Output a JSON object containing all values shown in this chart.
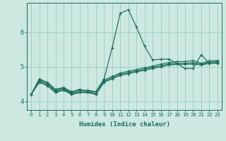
{
  "xlabel": "Humidex (Indice chaleur)",
  "ylabel": "",
  "bg_color": "#cce8e0",
  "grid_color": "#99ccbb",
  "line_color": "#1a6b5a",
  "xlim": [
    -0.5,
    23.5
  ],
  "ylim": [
    3.75,
    6.85
  ],
  "yticks": [
    4,
    5,
    6
  ],
  "xticks": [
    0,
    1,
    2,
    3,
    4,
    5,
    6,
    7,
    8,
    9,
    10,
    11,
    12,
    13,
    14,
    15,
    16,
    17,
    18,
    19,
    20,
    21,
    22,
    23
  ],
  "series": [
    [
      4.2,
      4.65,
      4.55,
      4.35,
      4.4,
      4.28,
      4.35,
      4.28,
      4.28,
      4.65,
      5.55,
      6.55,
      6.65,
      6.15,
      5.6,
      5.2,
      5.22,
      5.22,
      5.1,
      4.95,
      4.95,
      5.35,
      5.1,
      5.1
    ],
    [
      4.2,
      4.62,
      4.52,
      4.32,
      4.38,
      4.25,
      4.32,
      4.32,
      4.28,
      4.62,
      4.72,
      4.82,
      4.87,
      4.92,
      4.97,
      5.02,
      5.08,
      5.12,
      5.15,
      5.15,
      5.18,
      5.1,
      5.17,
      5.18
    ],
    [
      4.2,
      4.58,
      4.48,
      4.28,
      4.35,
      4.22,
      4.28,
      4.28,
      4.22,
      4.58,
      4.68,
      4.78,
      4.83,
      4.88,
      4.93,
      4.98,
      5.03,
      5.08,
      5.1,
      5.1,
      5.12,
      5.08,
      5.13,
      5.15
    ],
    [
      4.2,
      4.55,
      4.45,
      4.25,
      4.32,
      4.2,
      4.25,
      4.25,
      4.2,
      4.55,
      4.65,
      4.75,
      4.8,
      4.85,
      4.9,
      4.95,
      5.0,
      5.05,
      5.07,
      5.07,
      5.08,
      5.05,
      5.1,
      5.12
    ]
  ]
}
